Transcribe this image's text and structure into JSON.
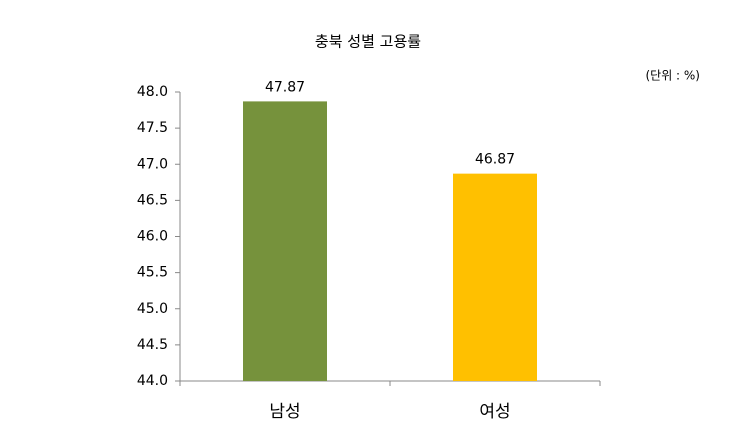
{
  "chart_data": {
    "type": "bar",
    "title": "충북 성별 고용률",
    "unit_note": "(단위 : %)",
    "categories": [
      "남성",
      "여성"
    ],
    "values": [
      47.87,
      46.87
    ],
    "colors": [
      "#76923c",
      "#ffc000"
    ],
    "ylim": [
      44,
      48
    ],
    "yticks": [
      {
        "value": 44,
        "label": "44.0"
      },
      {
        "value": 44.5,
        "label": "44.5"
      },
      {
        "value": 45,
        "label": "45.0"
      },
      {
        "value": 45.5,
        "label": "45.5"
      },
      {
        "value": 46,
        "label": "46.0"
      },
      {
        "value": 46.5,
        "label": "46.5"
      },
      {
        "value": 47,
        "label": "47.0"
      },
      {
        "value": 47.5,
        "label": "47.5"
      },
      {
        "value": 48,
        "label": "48.0"
      }
    ],
    "grid": false
  }
}
